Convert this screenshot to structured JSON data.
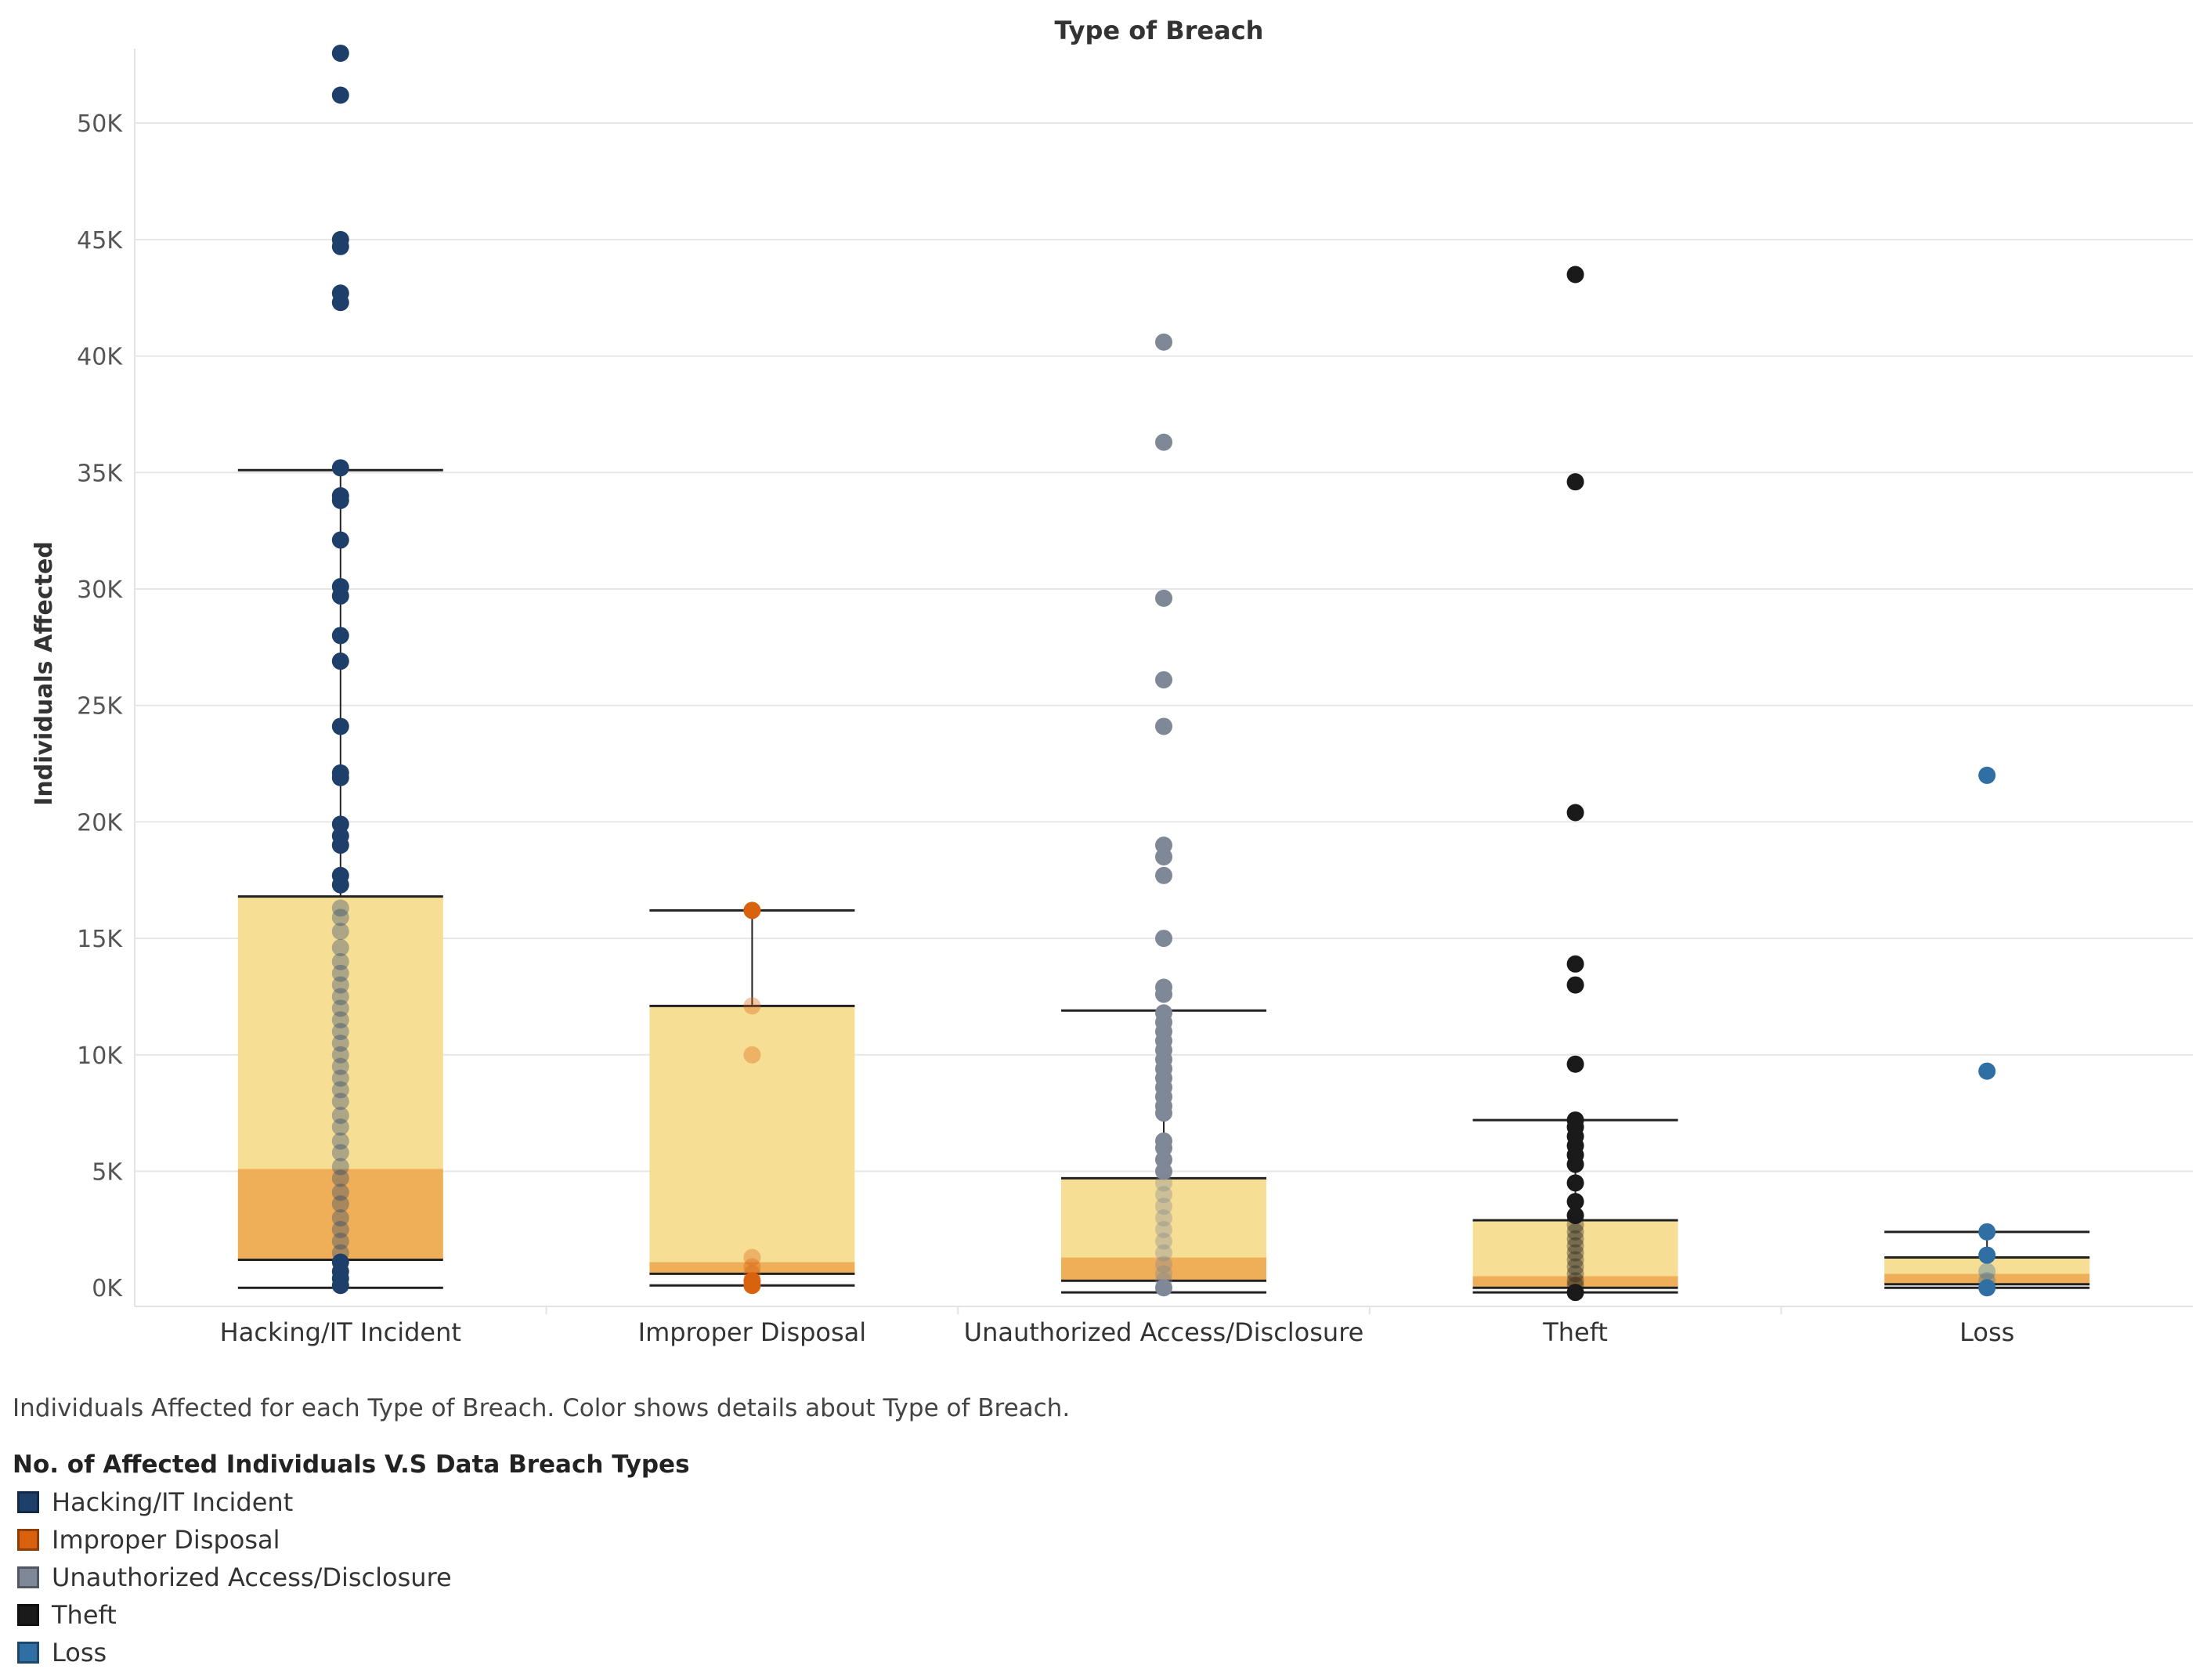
{
  "chart_data": {
    "type": "box",
    "title": "Type of Breach",
    "xlabel": "",
    "ylabel": "Individuals Affected",
    "ylim": [
      -800,
      53200
    ],
    "y_ticks": [
      0,
      5000,
      10000,
      15000,
      20000,
      25000,
      30000,
      35000,
      40000,
      45000,
      50000
    ],
    "y_tick_labels": [
      "0K",
      "5K",
      "10K",
      "15K",
      "20K",
      "25K",
      "30K",
      "35K",
      "40K",
      "45K",
      "50K"
    ],
    "grid": true,
    "categories": [
      "Hacking/IT Incident",
      "Improper Disposal",
      "Unauthorized Access/Disclosure",
      "Theft",
      "Loss"
    ],
    "series": [
      {
        "name": "Hacking/IT Incident",
        "color": "#1f3f6b",
        "box": {
          "whisker_low": 0,
          "q1": 1200,
          "median": 5100,
          "q3": 16800,
          "whisker_high": 35100
        },
        "points": [
          53000,
          51200,
          45000,
          44700,
          42700,
          42300,
          35200,
          34000,
          33800,
          32100,
          30100,
          29700,
          28000,
          26900,
          24100,
          22100,
          21900,
          19900,
          19400,
          19000,
          17700,
          17300,
          16300,
          15900,
          15300,
          14600,
          14000,
          13500,
          13000,
          12500,
          12000,
          11500,
          11000,
          10500,
          10000,
          9500,
          9000,
          8500,
          8000,
          7400,
          6900,
          6300,
          5800,
          5200,
          4700,
          4100,
          3600,
          3000,
          2500,
          2000,
          1500,
          1100,
          700,
          400,
          100
        ]
      },
      {
        "name": "Improper Disposal",
        "color": "#d9620f",
        "box": {
          "whisker_low": 100,
          "q1": 600,
          "median": 1100,
          "q3": 12100,
          "whisker_high": 16200
        },
        "points": [
          16200,
          12100,
          10000,
          1300,
          900,
          600,
          300,
          100
        ]
      },
      {
        "name": "Unauthorized Access/Disclosure",
        "color": "#7f8896",
        "box": {
          "whisker_low": -200,
          "q1": 300,
          "median": 1300,
          "q3": 4700,
          "whisker_high": 11900
        },
        "points": [
          40600,
          36300,
          29600,
          26100,
          24100,
          19000,
          18500,
          17700,
          15000,
          12900,
          12600,
          11800,
          11400,
          11000,
          10600,
          10200,
          9800,
          9400,
          9000,
          8600,
          8200,
          7800,
          7500,
          6300,
          6000,
          5500,
          5000,
          4500,
          4000,
          3500,
          3000,
          2500,
          2000,
          1500,
          1000,
          600,
          300,
          0
        ]
      },
      {
        "name": "Theft",
        "color": "#1a1a1a",
        "box": {
          "whisker_low": -200,
          "q1": 0,
          "median": 500,
          "q3": 2900,
          "whisker_high": 7200
        },
        "points": [
          43500,
          34600,
          20400,
          13900,
          13000,
          9600,
          7200,
          6900,
          6500,
          6100,
          5700,
          5300,
          4500,
          3700,
          3100,
          2700,
          2400,
          2100,
          1800,
          1500,
          1200,
          900,
          600,
          300,
          100,
          -200
        ]
      },
      {
        "name": "Loss",
        "color": "#2f6fa3",
        "box": {
          "whisker_low": 0,
          "q1": 150,
          "median": 600,
          "q3": 1300,
          "whisker_high": 2400
        },
        "points": [
          22000,
          9300,
          2400,
          1400,
          700,
          300,
          0
        ]
      }
    ]
  },
  "caption": "Individuals Affected for each Type of Breach.  Color shows details about Type of Breach.",
  "legend": {
    "title": "No. of Affected Individuals V.S Data Breach Types",
    "items": [
      {
        "label": "Hacking/IT Incident",
        "color": "#1f3f6b"
      },
      {
        "label": "Improper Disposal",
        "color": "#d9620f"
      },
      {
        "label": "Unauthorized Access/Disclosure",
        "color": "#7f8896"
      },
      {
        "label": "Theft",
        "color": "#1a1a1a"
      },
      {
        "label": "Loss",
        "color": "#2f6fa3"
      }
    ]
  }
}
